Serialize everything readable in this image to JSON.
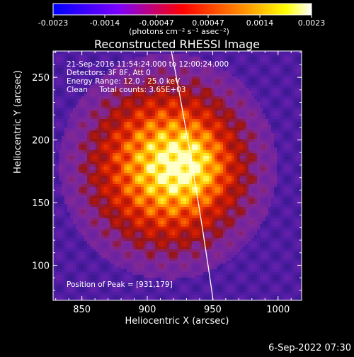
{
  "colorbar": {
    "ticks": [
      "-0.0023",
      "-0.0014",
      "-0.00047",
      "0.00047",
      "0.0014",
      "0.0023"
    ],
    "units": "(photons cm⁻² s⁻¹ asec⁻²)",
    "colors": [
      "#0000ff",
      "#7a00ff",
      "#ff0000",
      "#ff7a00",
      "#ffff00",
      "#ffffff"
    ]
  },
  "chart_data": {
    "type": "heatmap",
    "title": "Reconstructed RHESSI Image",
    "xlabel": "Heliocentric X (arcsec)",
    "ylabel": "Heliocentric Y (arcsec)",
    "xlim": [
      828,
      1018
    ],
    "ylim": [
      72,
      271
    ],
    "xticks": [
      850,
      900,
      950,
      1000
    ],
    "yticks": [
      100,
      150,
      200,
      250
    ],
    "colorscale_range": [
      -0.0023,
      0.0023
    ],
    "peak": {
      "x": 931,
      "y": 179
    },
    "limb": "white solar-limb arc crossing from about (920, 271) to (953, 72)"
  },
  "annotations": {
    "time_range": "21-Sep-2016 11:54:24.000 to 12:00:24.000",
    "detectors": "Detectors: 3F 8F, Att 0",
    "energy": "Energy Range: 12.0 - 25.0 keV",
    "clean": "Clean     Total counts: 3.65E+03",
    "peak_label": "Position of Peak = [931,179]"
  },
  "footer": {
    "timestamp": "6-Sep-2022 07:30"
  }
}
